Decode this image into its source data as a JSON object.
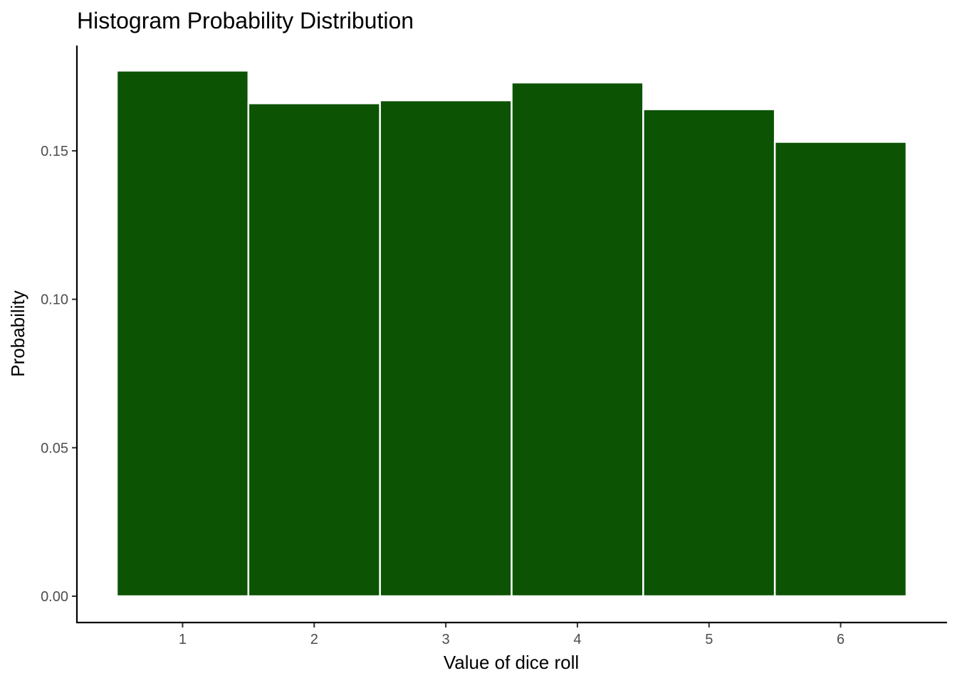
{
  "chart_data": {
    "type": "bar",
    "title": "Histogram Probability Distribution",
    "xlabel": "Value of dice roll",
    "ylabel": "Probability",
    "categories": [
      "1",
      "2",
      "3",
      "4",
      "5",
      "6"
    ],
    "x": [
      1,
      2,
      3,
      4,
      5,
      6
    ],
    "values": [
      0.177,
      0.166,
      0.167,
      0.173,
      0.164,
      0.153
    ],
    "xlim": [
      0.5,
      6.5
    ],
    "ylim": [
      0,
      0.177
    ],
    "yticks": [
      0.0,
      0.05,
      0.1,
      0.15
    ],
    "ytick_labels": [
      "0.00",
      "0.05",
      "0.10",
      "0.15"
    ],
    "xticks": [
      1,
      2,
      3,
      4,
      5,
      6
    ],
    "xtick_labels": [
      "1",
      "2",
      "3",
      "4",
      "5",
      "6"
    ],
    "grid": false,
    "legend": "none",
    "bar_color": "#0c5304",
    "bar_edge_color": "#ffffff"
  }
}
